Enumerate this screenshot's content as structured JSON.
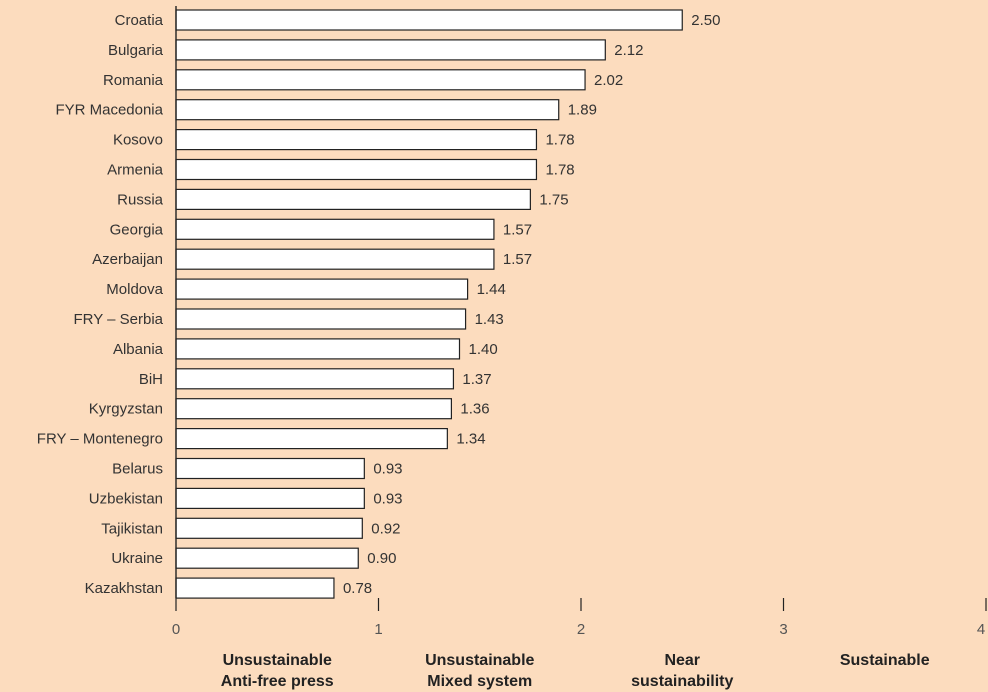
{
  "colors": {
    "background": "#fcdcbe",
    "bar_fill": "#ffffff",
    "bar_stroke": "#222222",
    "axis": "#222222"
  },
  "chart_data": {
    "type": "bar",
    "orientation": "horizontal",
    "categories": [
      "Croatia",
      "Bulgaria",
      "Romania",
      "FYR Macedonia",
      "Kosovo",
      "Armenia",
      "Russia",
      "Georgia",
      "Azerbaijan",
      "Moldova",
      "FRY – Serbia",
      "Albania",
      "BiH",
      "Kyrgyzstan",
      "FRY – Montenegro",
      "Belarus",
      "Uzbekistan",
      "Tajikistan",
      "Ukraine",
      "Kazakhstan"
    ],
    "values": [
      2.5,
      2.12,
      2.02,
      1.89,
      1.78,
      1.78,
      1.75,
      1.57,
      1.57,
      1.44,
      1.43,
      1.4,
      1.37,
      1.36,
      1.34,
      0.93,
      0.93,
      0.92,
      0.9,
      0.78
    ],
    "value_labels": [
      "2.50",
      "2.12",
      "2.02",
      "1.89",
      "1.78",
      "1.78",
      "1.75",
      "1.57",
      "1.57",
      "1.44",
      "1.43",
      "1.40",
      "1.37",
      "1.36",
      "1.34",
      "0.93",
      "0.93",
      "0.92",
      "0.90",
      "0.78"
    ],
    "xlim": [
      0,
      4
    ],
    "xticks": [
      "0",
      "1",
      "2",
      "3",
      "4"
    ],
    "band_labels": [
      [
        "Unsustainable",
        "Anti-free press"
      ],
      [
        "Unsustainable",
        "Mixed system"
      ],
      [
        "Near",
        "sustainability"
      ],
      [
        "Sustainable"
      ]
    ],
    "title": "",
    "xlabel": "",
    "ylabel": "",
    "grid": false,
    "legend": "none"
  }
}
